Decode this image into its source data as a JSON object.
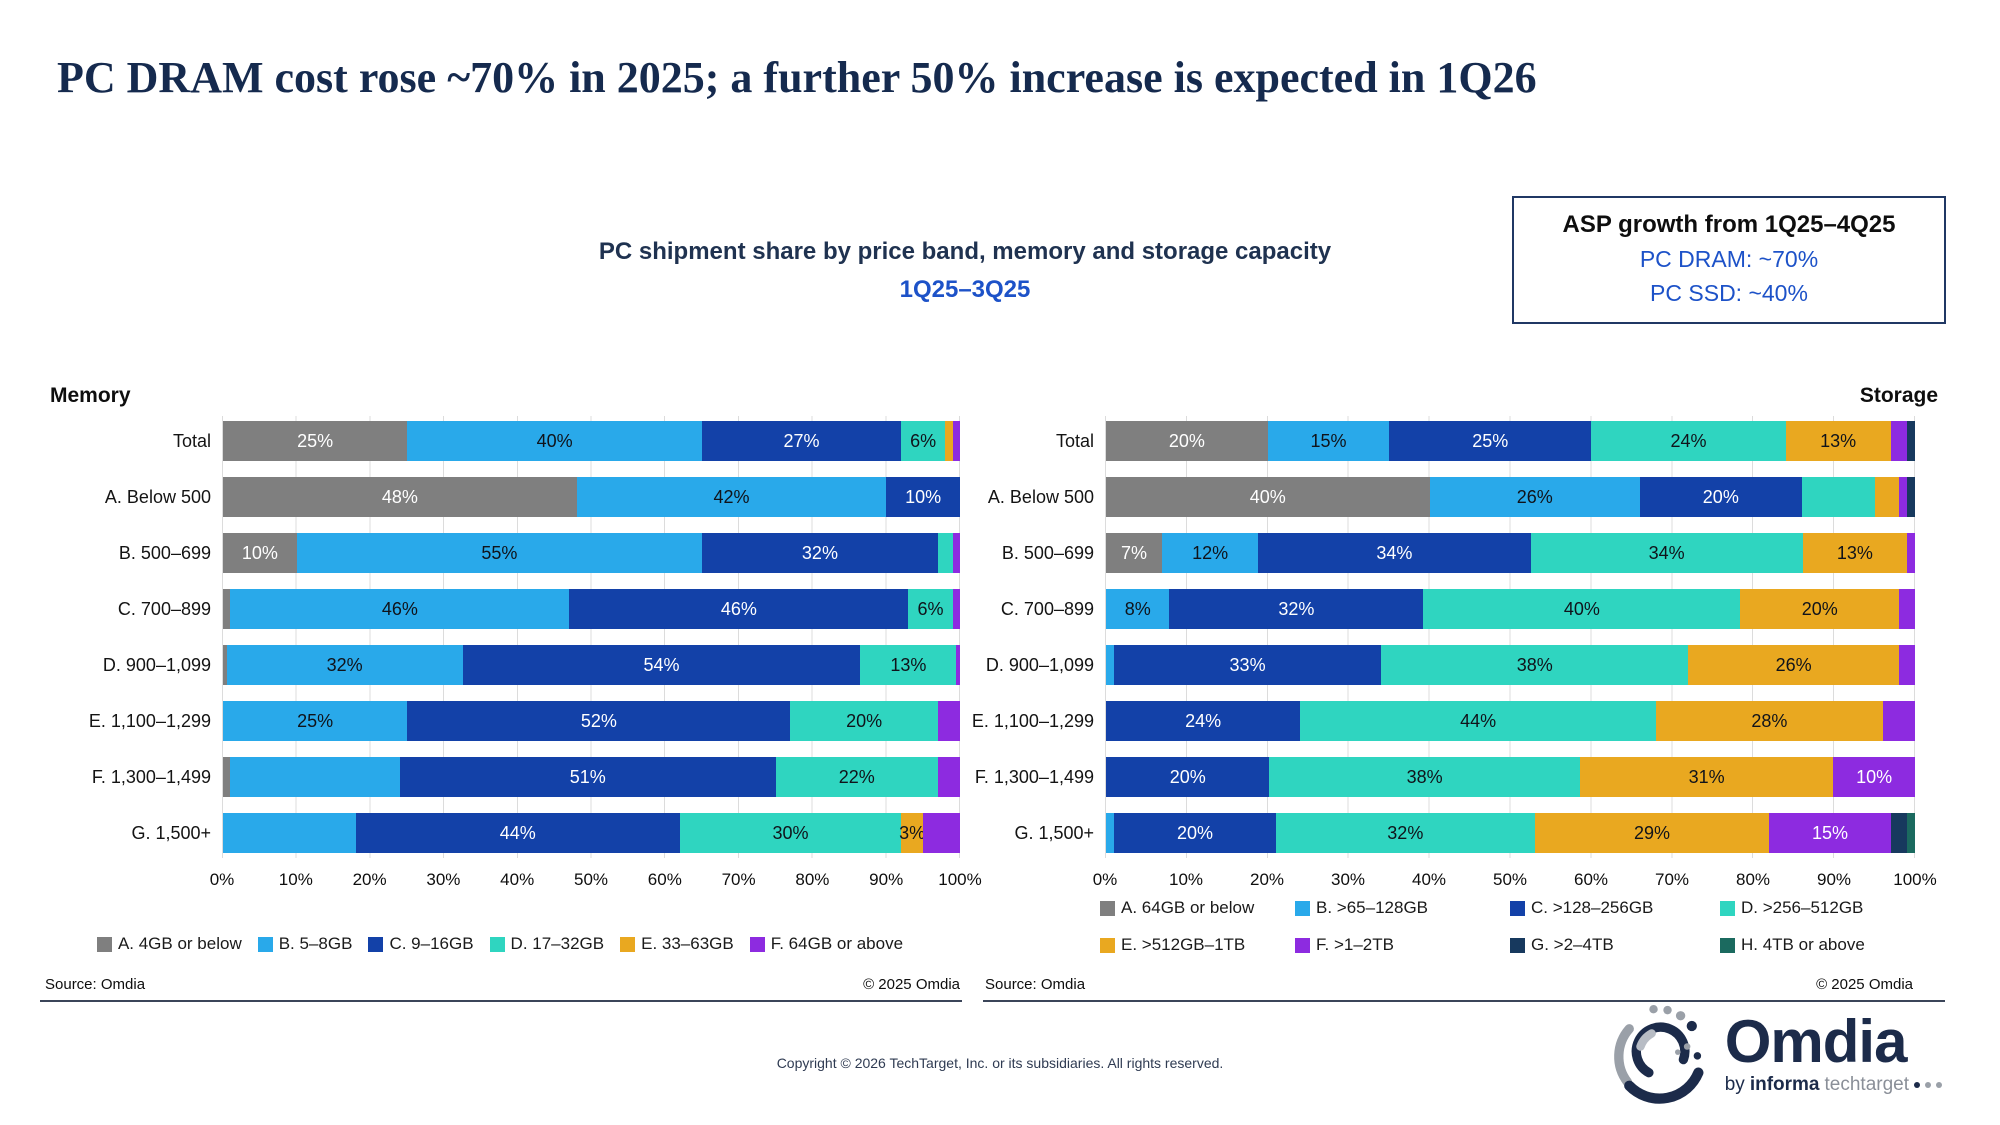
{
  "header": {
    "title": "PC DRAM cost rose ~70% in 2025; a further 50% increase is expected in 1Q26",
    "subtitle": "PC shipment share by price band, memory and storage capacity",
    "subtitle_period": "1Q25–3Q25",
    "asp_box": {
      "title": "ASP growth from 1Q25–4Q25",
      "dram_line": "PC DRAM: ~70%",
      "ssd_line": "PC SSD: ~40%"
    }
  },
  "chart_data": [
    {
      "type": "bar",
      "stacked": true,
      "orientation": "horizontal",
      "panel_label": "Memory",
      "xlabel": "",
      "ylabel": "",
      "xlim": [
        0,
        100
      ],
      "grid": true,
      "legend_position": "bottom",
      "legend_layout": "row",
      "x_ticks": [
        "0%",
        "10%",
        "20%",
        "30%",
        "40%",
        "50%",
        "60%",
        "70%",
        "80%",
        "90%",
        "100%"
      ],
      "legend": [
        {
          "label": "A. 4GB or below",
          "color": "#7F7F7F",
          "label_color": "#FFFFFF"
        },
        {
          "label": "B. 5–8GB",
          "color": "#29A9EA",
          "label_color": "#10131A"
        },
        {
          "label": "C. 9–16GB",
          "color": "#1341A8",
          "label_color": "#FFFFFF"
        },
        {
          "label": "D. 17–32GB",
          "color": "#2FD5C0",
          "label_color": "#10131A"
        },
        {
          "label": "E. 33–63GB",
          "color": "#E9A820",
          "label_color": "#10131A"
        },
        {
          "label": "F. 64GB or above",
          "color": "#8D2BE0",
          "label_color": "#FFFFFF"
        }
      ],
      "categories": [
        "Total",
        "A. Below 500",
        "B. 500–699",
        "C. 700–899",
        "D. 900–1,099",
        "E. 1,100–1,299",
        "F. 1,300–1,499",
        "G. 1,500+"
      ],
      "rows": [
        {
          "category": "Total",
          "segments": [
            {
              "series": "A. 4GB or below",
              "value": 25,
              "label": "25%"
            },
            {
              "series": "B. 5–8GB",
              "value": 40,
              "label": "40%"
            },
            {
              "series": "C. 9–16GB",
              "value": 27,
              "label": "27%"
            },
            {
              "series": "D. 17–32GB",
              "value": 6,
              "label": "6%"
            },
            {
              "series": "E. 33–63GB",
              "value": 1,
              "label": ""
            },
            {
              "series": "F. 64GB or above",
              "value": 1,
              "label": ""
            }
          ]
        },
        {
          "category": "A. Below 500",
          "segments": [
            {
              "series": "A. 4GB or below",
              "value": 48,
              "label": "48%"
            },
            {
              "series": "B. 5–8GB",
              "value": 42,
              "label": "42%"
            },
            {
              "series": "C. 9–16GB",
              "value": 10,
              "label": "10%"
            }
          ]
        },
        {
          "category": "B. 500–699",
          "segments": [
            {
              "series": "A. 4GB or below",
              "value": 10,
              "label": "10%"
            },
            {
              "series": "B. 5–8GB",
              "value": 55,
              "label": "55%"
            },
            {
              "series": "C. 9–16GB",
              "value": 32,
              "label": "32%"
            },
            {
              "series": "D. 17–32GB",
              "value": 2,
              "label": ""
            },
            {
              "series": "F. 64GB or above",
              "value": 1,
              "label": ""
            }
          ]
        },
        {
          "category": "C. 700–899",
          "segments": [
            {
              "series": "A. 4GB or below",
              "value": 1,
              "label": ""
            },
            {
              "series": "B. 5–8GB",
              "value": 46,
              "label": "46%"
            },
            {
              "series": "C. 9–16GB",
              "value": 46,
              "label": "46%"
            },
            {
              "series": "D. 17–32GB",
              "value": 6,
              "label": "6%"
            },
            {
              "series": "F. 64GB or above",
              "value": 1,
              "label": ""
            }
          ]
        },
        {
          "category": "D. 900–1,099",
          "segments": [
            {
              "series": "A. 4GB or below",
              "value": 0.5,
              "label": ""
            },
            {
              "series": "B. 5–8GB",
              "value": 32,
              "label": "32%"
            },
            {
              "series": "C. 9–16GB",
              "value": 54,
              "label": "54%"
            },
            {
              "series": "D. 17–32GB",
              "value": 13,
              "label": "13%"
            },
            {
              "series": "F. 64GB or above",
              "value": 0.5,
              "label": ""
            }
          ]
        },
        {
          "category": "E. 1,100–1,299",
          "segments": [
            {
              "series": "B. 5–8GB",
              "value": 25,
              "label": "25%"
            },
            {
              "series": "C. 9–16GB",
              "value": 52,
              "label": "52%"
            },
            {
              "series": "D. 17–32GB",
              "value": 20,
              "label": "20%"
            },
            {
              "series": "F. 64GB or above",
              "value": 3,
              "label": ""
            }
          ]
        },
        {
          "category": "F. 1,300–1,499",
          "segments": [
            {
              "series": "A. 4GB or below",
              "value": 1,
              "label": ""
            },
            {
              "series": "B. 5–8GB",
              "value": 23,
              "label": ""
            },
            {
              "series": "C. 9–16GB",
              "value": 51,
              "label": "51%"
            },
            {
              "series": "D. 17–32GB",
              "value": 22,
              "label": "22%"
            },
            {
              "series": "F. 64GB or above",
              "value": 3,
              "label": ""
            }
          ]
        },
        {
          "category": "G. 1,500+",
          "segments": [
            {
              "series": "B. 5–8GB",
              "value": 18,
              "label": ""
            },
            {
              "series": "C. 9–16GB",
              "value": 44,
              "label": "44%"
            },
            {
              "series": "D. 17–32GB",
              "value": 30,
              "label": "30%"
            },
            {
              "series": "E. 33–63GB",
              "value": 3,
              "label": "3%"
            },
            {
              "series": "F. 64GB or above",
              "value": 5,
              "label": ""
            }
          ]
        }
      ]
    },
    {
      "type": "bar",
      "stacked": true,
      "orientation": "horizontal",
      "panel_label": "Storage",
      "xlabel": "",
      "ylabel": "",
      "xlim": [
        0,
        100
      ],
      "grid": true,
      "legend_position": "bottom",
      "legend_layout": "grid",
      "x_ticks": [
        "0%",
        "10%",
        "20%",
        "30%",
        "40%",
        "50%",
        "60%",
        "70%",
        "80%",
        "90%",
        "100%"
      ],
      "legend": [
        {
          "label": "A. 64GB or below",
          "color": "#7F7F7F",
          "label_color": "#FFFFFF"
        },
        {
          "label": "B. >65–128GB",
          "color": "#29A9EA",
          "label_color": "#10131A"
        },
        {
          "label": "C. >128–256GB",
          "color": "#1341A8",
          "label_color": "#FFFFFF"
        },
        {
          "label": "D. >256–512GB",
          "color": "#2FD5C0",
          "label_color": "#10131A"
        },
        {
          "label": "E. >512GB–1TB",
          "color": "#E9A820",
          "label_color": "#10131A"
        },
        {
          "label": "F. >1–2TB",
          "color": "#8D2BE0",
          "label_color": "#FFFFFF"
        },
        {
          "label": "G. >2–4TB",
          "color": "#17395E",
          "label_color": "#FFFFFF"
        },
        {
          "label": "H. 4TB or above",
          "color": "#1B6A5F",
          "label_color": "#FFFFFF"
        }
      ],
      "categories": [
        "Total",
        "A. Below 500",
        "B. 500–699",
        "C. 700–899",
        "D. 900–1,099",
        "E. 1,100–1,299",
        "F. 1,300–1,499",
        "G. 1,500+"
      ],
      "rows": [
        {
          "category": "Total",
          "segments": [
            {
              "series": "A. 64GB or below",
              "value": 20,
              "label": "20%"
            },
            {
              "series": "B. >65–128GB",
              "value": 15,
              "label": "15%"
            },
            {
              "series": "C. >128–256GB",
              "value": 25,
              "label": "25%"
            },
            {
              "series": "D. >256–512GB",
              "value": 24,
              "label": "24%"
            },
            {
              "series": "E. >512GB–1TB",
              "value": 13,
              "label": "13%"
            },
            {
              "series": "F. >1–2TB",
              "value": 2,
              "label": ""
            },
            {
              "series": "G. >2–4TB",
              "value": 1,
              "label": ""
            }
          ]
        },
        {
          "category": "A. Below 500",
          "segments": [
            {
              "series": "A. 64GB or below",
              "value": 40,
              "label": "40%"
            },
            {
              "series": "B. >65–128GB",
              "value": 26,
              "label": "26%"
            },
            {
              "series": "C. >128–256GB",
              "value": 20,
              "label": "20%"
            },
            {
              "series": "D. >256–512GB",
              "value": 9,
              "label": ""
            },
            {
              "series": "E. >512GB–1TB",
              "value": 3,
              "label": ""
            },
            {
              "series": "F. >1–2TB",
              "value": 1,
              "label": ""
            },
            {
              "series": "G. >2–4TB",
              "value": 1,
              "label": ""
            }
          ]
        },
        {
          "category": "B. 500–699",
          "segments": [
            {
              "series": "A. 64GB or below",
              "value": 7,
              "label": "7%"
            },
            {
              "series": "B. >65–128GB",
              "value": 12,
              "label": "12%"
            },
            {
              "series": "C. >128–256GB",
              "value": 34,
              "label": "34%"
            },
            {
              "series": "D. >256–512GB",
              "value": 34,
              "label": "34%"
            },
            {
              "series": "E. >512GB–1TB",
              "value": 13,
              "label": "13%"
            },
            {
              "series": "F. >1–2TB",
              "value": 1,
              "label": ""
            }
          ]
        },
        {
          "category": "C. 700–899",
          "segments": [
            {
              "series": "B. >65–128GB",
              "value": 8,
              "label": "8%"
            },
            {
              "series": "C. >128–256GB",
              "value": 32,
              "label": "32%"
            },
            {
              "series": "D. >256–512GB",
              "value": 40,
              "label": "40%"
            },
            {
              "series": "E. >512GB–1TB",
              "value": 20,
              "label": "20%"
            },
            {
              "series": "F. >1–2TB",
              "value": 2,
              "label": ""
            }
          ]
        },
        {
          "category": "D. 900–1,099",
          "segments": [
            {
              "series": "B. >65–128GB",
              "value": 1,
              "label": ""
            },
            {
              "series": "C. >128–256GB",
              "value": 33,
              "label": "33%"
            },
            {
              "series": "D. >256–512GB",
              "value": 38,
              "label": "38%"
            },
            {
              "series": "E. >512GB–1TB",
              "value": 26,
              "label": "26%"
            },
            {
              "series": "F. >1–2TB",
              "value": 2,
              "label": ""
            }
          ]
        },
        {
          "category": "E. 1,100–1,299",
          "segments": [
            {
              "series": "C. >128–256GB",
              "value": 24,
              "label": "24%"
            },
            {
              "series": "D. >256–512GB",
              "value": 44,
              "label": "44%"
            },
            {
              "series": "E. >512GB–1TB",
              "value": 28,
              "label": "28%"
            },
            {
              "series": "F. >1–2TB",
              "value": 4,
              "label": ""
            }
          ]
        },
        {
          "category": "F. 1,300–1,499",
          "segments": [
            {
              "series": "C. >128–256GB",
              "value": 20,
              "label": "20%"
            },
            {
              "series": "D. >256–512GB",
              "value": 38,
              "label": "38%"
            },
            {
              "series": "E. >512GB–1TB",
              "value": 31,
              "label": "31%"
            },
            {
              "series": "F. >1–2TB",
              "value": 10,
              "label": "10%"
            }
          ]
        },
        {
          "category": "G. 1,500+",
          "segments": [
            {
              "series": "B. >65–128GB",
              "value": 1,
              "label": ""
            },
            {
              "series": "C. >128–256GB",
              "value": 20,
              "label": "20%"
            },
            {
              "series": "D. >256–512GB",
              "value": 32,
              "label": "32%"
            },
            {
              "series": "E. >512GB–1TB",
              "value": 29,
              "label": "29%"
            },
            {
              "series": "F. >1–2TB",
              "value": 15,
              "label": "15%"
            },
            {
              "series": "G. >2–4TB",
              "value": 2,
              "label": ""
            },
            {
              "series": "H. 4TB or above",
              "value": 1,
              "label": ""
            }
          ]
        }
      ]
    }
  ],
  "footer": {
    "source_left": "Source: Omdia",
    "copyright_left": "© 2025 Omdia",
    "source_right": "Source: Omdia",
    "copyright_right": "© 2025 Omdia",
    "page_copyright": "Copyright © 2026 TechTarget, Inc. or its subsidiaries. All rights reserved.",
    "logo": {
      "name": "Omdia",
      "by": "by",
      "informa": "informa",
      "techtarget": "techtarget"
    }
  },
  "colors": {
    "title_navy": "#152A4E",
    "accent_blue": "#1D52C8",
    "grid_gray": "#DCDCDC",
    "divider": "#3B4559"
  }
}
